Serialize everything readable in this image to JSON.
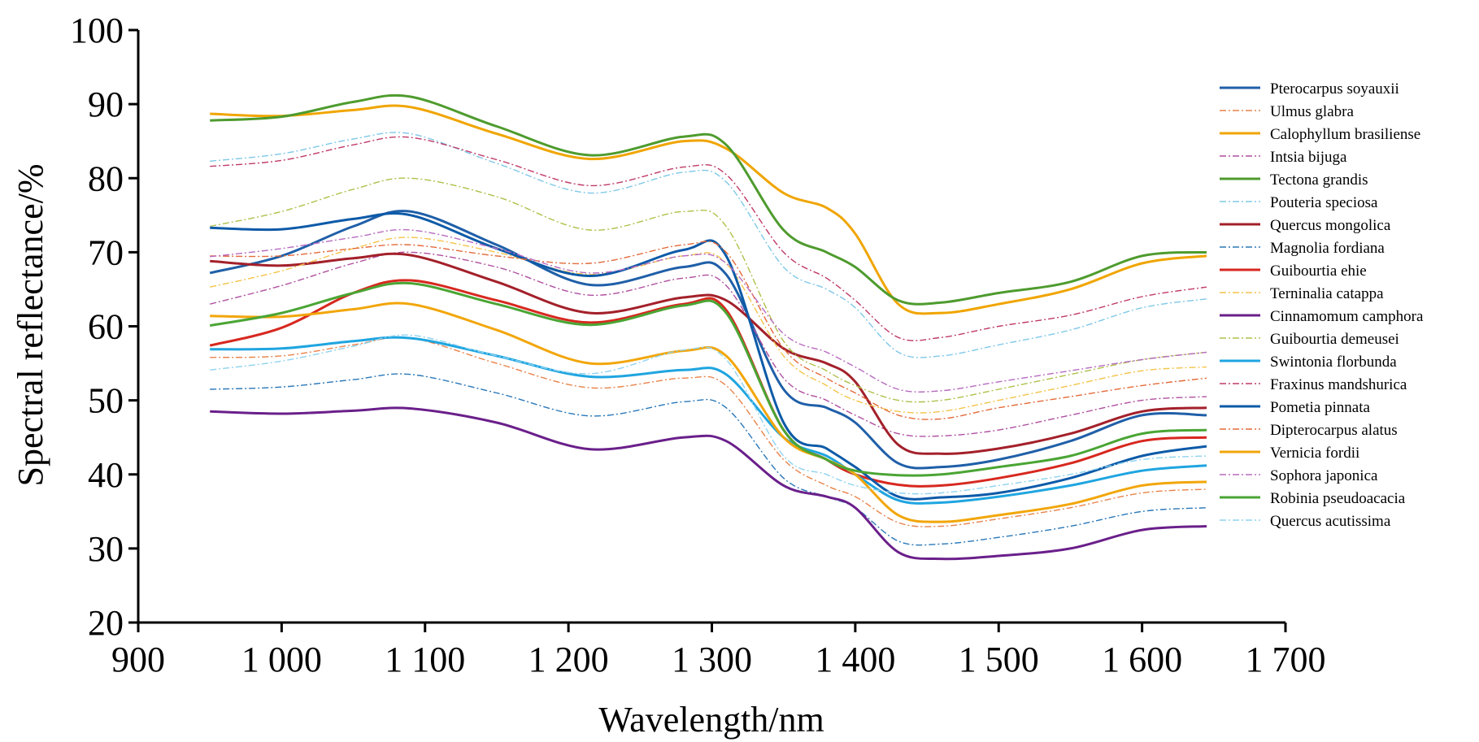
{
  "chart_data": {
    "type": "line",
    "xlabel": "Wavelength/nm",
    "ylabel": "Spectral reflectance/%",
    "xlim": [
      900,
      1700
    ],
    "ylim": [
      20,
      100
    ],
    "x_ticks": [
      900,
      1000,
      1100,
      1200,
      1300,
      1400,
      1500,
      1600,
      1700
    ],
    "x_tick_labels": [
      "900",
      "1 000",
      "1 100",
      "1 200",
      "1 300",
      "1 400",
      "1 500",
      "1 600",
      "1 700"
    ],
    "y_ticks": [
      20,
      30,
      40,
      50,
      60,
      70,
      80,
      90,
      100
    ],
    "y_tick_labels": [
      "20",
      "30",
      "40",
      "50",
      "60",
      "70",
      "80",
      "90",
      "100"
    ],
    "grid": false,
    "legend_position": "right",
    "x": [
      950,
      1000,
      1050,
      1090,
      1150,
      1215,
      1280,
      1310,
      1350,
      1380,
      1400,
      1430,
      1460,
      1500,
      1550,
      1600,
      1645
    ],
    "series": [
      {
        "name": "Pterocarpus soyauxii",
        "color": "#1f5fa8",
        "dash": "solid",
        "values": [
          67.2,
          69.5,
          73.5,
          75.5,
          71,
          65.6,
          68,
          67,
          51.5,
          49,
          47,
          41.5,
          41,
          42,
          44.5,
          48,
          48
        ]
      },
      {
        "name": "Ulmus glabra",
        "color": "#e9834a",
        "dash": "dashdot",
        "values": [
          55.8,
          56,
          57.5,
          58.4,
          55,
          51.7,
          53,
          52,
          42,
          38.5,
          37,
          33.5,
          33,
          34,
          35.5,
          37.5,
          38
        ]
      },
      {
        "name": "Calophyllum brasiliense",
        "color": "#f0a500",
        "dash": "solid",
        "values": [
          88.7,
          88.4,
          89.2,
          89.6,
          86,
          82.6,
          85,
          84,
          78,
          76,
          72.5,
          63,
          61.8,
          63,
          65,
          68.5,
          69.5
        ]
      },
      {
        "name": "Intsia bijuga",
        "color": "#b04fa0",
        "dash": "dashdot",
        "values": [
          63,
          65.5,
          68.5,
          70,
          68,
          64.2,
          66.5,
          65.5,
          53,
          50,
          48,
          45.5,
          45.2,
          46,
          48,
          50,
          50.5
        ]
      },
      {
        "name": "Tectona grandis",
        "color": "#4e9b2e",
        "dash": "solid",
        "values": [
          87.8,
          88.3,
          90.3,
          91,
          87,
          83.1,
          85.6,
          84.5,
          73,
          70,
          68,
          63.5,
          63.2,
          64.5,
          66,
          69.5,
          70
        ]
      },
      {
        "name": "Pouteria speciosa",
        "color": "#7fc8e8",
        "dash": "dashdot",
        "values": [
          82.3,
          83.3,
          85.3,
          86,
          82,
          78,
          80.8,
          79.5,
          68,
          65,
          62.5,
          56.5,
          56,
          57.5,
          59.5,
          62.5,
          63.7
        ]
      },
      {
        "name": "Quercus mongolica",
        "color": "#a3202a",
        "dash": "solid",
        "values": [
          68.8,
          68.2,
          69.2,
          69.6,
          66,
          61.8,
          63.9,
          63.5,
          57,
          55,
          52.5,
          44,
          42.8,
          43.5,
          45.5,
          48.5,
          49
        ]
      },
      {
        "name": "Magnolia fordiana",
        "color": "#2a78b8",
        "dash": "dashdot",
        "values": [
          51.5,
          51.8,
          52.8,
          53.5,
          51,
          47.9,
          49.8,
          49,
          39.5,
          37,
          35.5,
          31,
          30.6,
          31.5,
          33,
          35,
          35.5
        ]
      },
      {
        "name": "Guibourtia ehie",
        "color": "#d7281f",
        "dash": "solid",
        "values": [
          57.4,
          59.8,
          64.5,
          66.2,
          63.5,
          60.5,
          63,
          62.2,
          46,
          42,
          40,
          38.6,
          38.5,
          39.5,
          41.5,
          44.5,
          45
        ]
      },
      {
        "name": "Terninalia catappa",
        "color": "#f4c44a",
        "dash": "dashdot",
        "values": [
          65.3,
          67.5,
          70.5,
          72,
          70,
          67,
          69.5,
          68.5,
          56,
          52,
          50,
          48.5,
          48.5,
          50,
          52,
          54,
          54.5
        ]
      },
      {
        "name": "Cinnamomum camphora",
        "color": "#6a1f8a",
        "dash": "solid",
        "values": [
          48.5,
          48.2,
          48.6,
          48.9,
          47,
          43.4,
          45,
          44.5,
          38.5,
          37,
          35.5,
          29.5,
          28.6,
          29,
          30,
          32.5,
          33
        ]
      },
      {
        "name": "Guibourtia demeusei",
        "color": "#b0c04a",
        "dash": "dashdot",
        "values": [
          73.5,
          75.5,
          78.5,
          80,
          77.5,
          73,
          75.5,
          73.5,
          58,
          54,
          52,
          50,
          50,
          51.5,
          53.5,
          55.5,
          56.5
        ]
      },
      {
        "name": "Swintonia florbunda",
        "color": "#1fa5e0",
        "dash": "solid",
        "values": [
          56.9,
          57,
          58,
          58.4,
          56,
          53.2,
          54.1,
          53.5,
          45,
          42.5,
          40,
          36.5,
          36.2,
          37,
          38.5,
          40.5,
          41.2
        ]
      },
      {
        "name": "Fraxinus mandshurica",
        "color": "#c03a6a",
        "dash": "dashdot",
        "values": [
          81.6,
          82.4,
          84.5,
          85.5,
          82.5,
          79,
          81.5,
          80.5,
          70,
          66.5,
          63.5,
          58.5,
          58.5,
          60,
          61.5,
          64,
          65.3
        ]
      },
      {
        "name": "Pometia pinnata",
        "color": "#0d5aa8",
        "dash": "solid",
        "values": [
          73.3,
          73.1,
          74.5,
          75,
          70.5,
          66.8,
          70.3,
          69.5,
          47,
          43.5,
          41,
          37,
          36.9,
          37.5,
          39.5,
          42.5,
          43.8
        ]
      },
      {
        "name": "Dipterocarpus alatus",
        "color": "#e36a3a",
        "dash": "dashdot",
        "values": [
          69.5,
          69.5,
          70.5,
          71,
          69.5,
          68.5,
          71,
          70,
          57,
          53,
          51,
          48,
          47.5,
          49,
          50.5,
          52,
          53
        ]
      },
      {
        "name": "Vernicia fordii",
        "color": "#f2a60a",
        "dash": "solid",
        "values": [
          61.4,
          61.3,
          62.3,
          63,
          59.5,
          55,
          56.7,
          56,
          45,
          42,
          40,
          34.5,
          33.6,
          34.5,
          36,
          38.5,
          39
        ]
      },
      {
        "name": "Sophora japonica",
        "color": "#b86bc0",
        "dash": "dashdot",
        "values": [
          69.4,
          70.5,
          72,
          73,
          70.5,
          67.2,
          69.5,
          68.5,
          59,
          56.5,
          54.5,
          51.5,
          51.3,
          52.5,
          54,
          55.5,
          56.5
        ]
      },
      {
        "name": "Robinia pseudoacacia",
        "color": "#4aa534",
        "dash": "solid",
        "values": [
          60.1,
          61.8,
          64.5,
          65.8,
          63,
          60.2,
          62.8,
          61.8,
          46,
          42,
          40.5,
          39.9,
          40,
          41,
          42.5,
          45.5,
          46
        ]
      },
      {
        "name": "Quercus acutissima",
        "color": "#8fd3f0",
        "dash": "dashdot",
        "values": [
          54.1,
          55.3,
          57.3,
          58.8,
          56,
          53.6,
          56.8,
          55.5,
          42.5,
          40,
          38.5,
          37.5,
          37.5,
          38.5,
          40,
          42,
          42.5
        ]
      }
    ]
  }
}
